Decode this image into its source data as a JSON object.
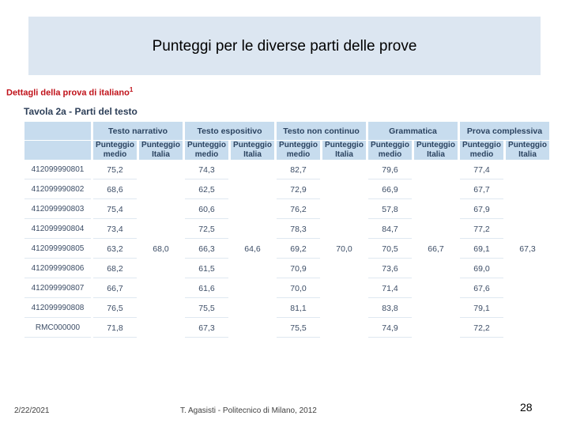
{
  "slide": {
    "title": "Punteggi per le diverse parti delle prove",
    "section_heading": "Dettagli della prova di italiano",
    "section_note": "1",
    "table_title": "Tavola 2a - Parti del testo"
  },
  "table": {
    "groups": [
      "Testo narrativo",
      "Testo espositivo",
      "Testo non continuo",
      "Grammatica",
      "Prova complessiva"
    ],
    "sub_medio": "Punteggio medio",
    "sub_italia": "Punteggio Italia",
    "rows": [
      {
        "id": "412099990801",
        "values": [
          "75,2",
          "74,3",
          "82,7",
          "79,6",
          "77,4"
        ]
      },
      {
        "id": "412099990802",
        "values": [
          "68,6",
          "62,5",
          "72,9",
          "66,9",
          "67,7"
        ]
      },
      {
        "id": "412099990803",
        "values": [
          "75,4",
          "60,6",
          "76,2",
          "57,8",
          "67,9"
        ]
      },
      {
        "id": "412099990804",
        "values": [
          "73,4",
          "72,5",
          "78,3",
          "84,7",
          "77,2"
        ]
      },
      {
        "id": "412099990805",
        "values": [
          "63,2",
          "66,3",
          "69,2",
          "70,5",
          "69,1"
        ]
      },
      {
        "id": "412099990806",
        "values": [
          "68,2",
          "61,5",
          "70,9",
          "73,6",
          "69,0"
        ]
      },
      {
        "id": "412099990807",
        "values": [
          "66,7",
          "61,6",
          "70,0",
          "71,4",
          "67,6"
        ]
      },
      {
        "id": "412099990808",
        "values": [
          "76,5",
          "75,5",
          "81,1",
          "83,8",
          "79,1"
        ]
      },
      {
        "id": "RMC000000",
        "values": [
          "71,8",
          "67,3",
          "75,5",
          "74,9",
          "72,2"
        ]
      }
    ],
    "italia": [
      "68,0",
      "64,6",
      "70,0",
      "66,7",
      "67,3"
    ]
  },
  "footer": {
    "date": "2/22/2021",
    "author": "T. Agasisti - Politecnico di Milano, 2012",
    "page": "28"
  }
}
